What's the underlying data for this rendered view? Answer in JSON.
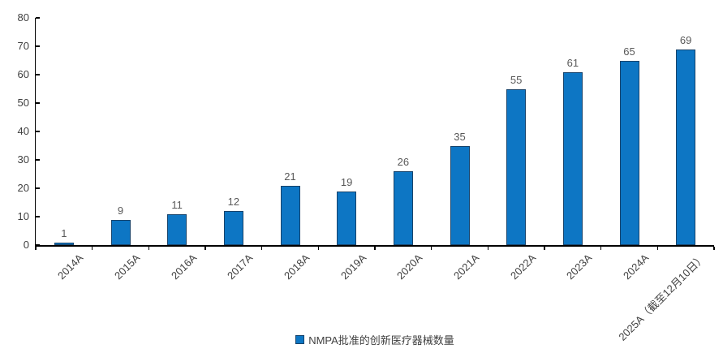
{
  "chart_data": {
    "type": "bar",
    "title": "",
    "categories": [
      "2014A",
      "2015A",
      "2016A",
      "2017A",
      "2018A",
      "2019A",
      "2020A",
      "2021A",
      "2022A",
      "2023A",
      "2024A",
      "2025A（截至12月10日）"
    ],
    "values": [
      1,
      9,
      11,
      12,
      21,
      19,
      26,
      35,
      55,
      61,
      65,
      69
    ],
    "series_name": "NMPA批准的创新医疗器械数量",
    "xlabel": "",
    "ylabel": "",
    "ylim": [
      0,
      80
    ],
    "yticks": [
      0,
      10,
      20,
      30,
      40,
      50,
      60,
      70,
      80
    ],
    "grid": false,
    "legend_position": "bottom",
    "bar_color": "#0D76C4",
    "bar_border_color": "#17436B",
    "value_label_color": "#595959",
    "axis_label_color": "#404040",
    "axis_color": "#000000"
  },
  "legend": {
    "marker": "square-icon",
    "label": "NMPA批准的创新医疗器械数量"
  }
}
